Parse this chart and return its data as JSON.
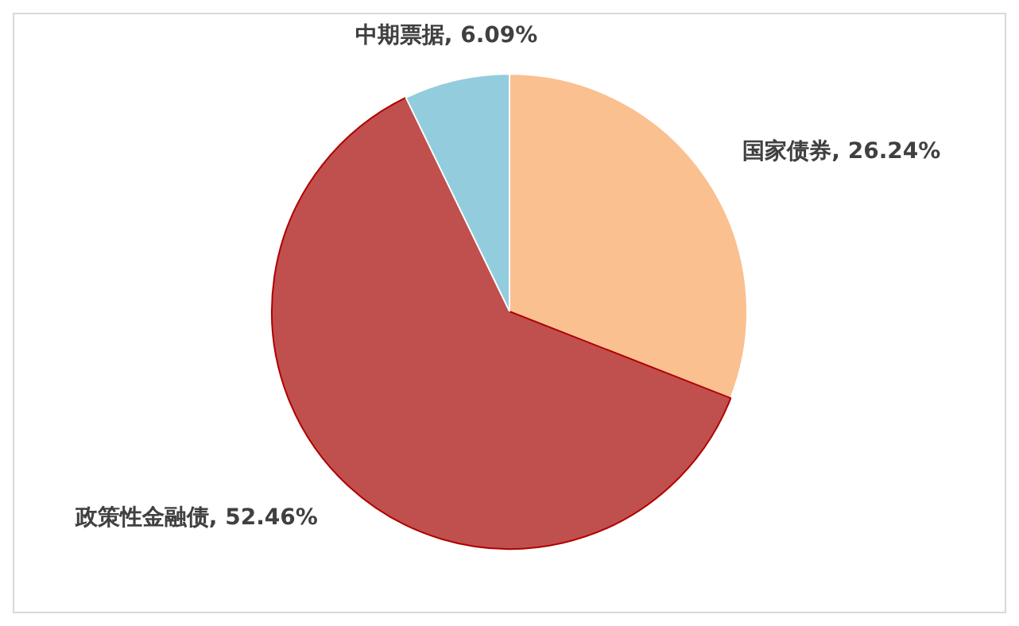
{
  "chart_data": {
    "type": "pie",
    "categories": [
      "国家债券",
      "政策性金融债",
      "中期票据"
    ],
    "values": [
      26.24,
      52.46,
      6.09
    ],
    "value_labels": [
      "26.24%",
      "52.46%",
      "6.09%"
    ],
    "colors": [
      "#fac090",
      "#c0504d",
      "#93cddd"
    ],
    "legend": false
  }
}
